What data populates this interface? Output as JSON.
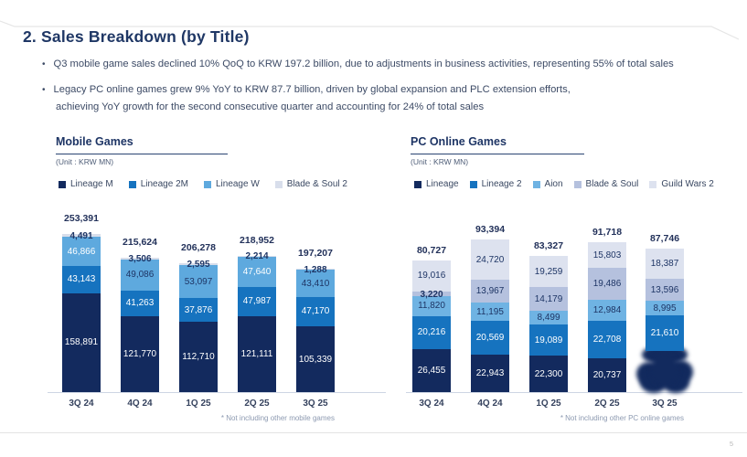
{
  "slide": {
    "title": "2. Sales Breakdown (by Title)",
    "bullets": {
      "b1": "Q3 mobile game sales declined 10% QoQ to KRW 197.2 billion, due to adjustments in business activities, representing 55% of total sales",
      "b2_line1": "Legacy PC online games grew 9% YoY to KRW 87.7 billion, driven by global expansion and PLC extension efforts,",
      "b2_line2": "achieving YoY growth for the second consecutive quarter and accounting for 24% of total sales"
    },
    "page_number": "5"
  },
  "chart_data": [
    {
      "type": "bar",
      "stacked": true,
      "title": "Mobile Games",
      "unit_label": "(Unit : KRW MN)",
      "footnote": "* Not including other mobile games",
      "legend_position": "top",
      "categories": [
        "3Q 24",
        "4Q 24",
        "1Q 25",
        "2Q 25",
        "3Q 25"
      ],
      "series": [
        {
          "name": "Lineage M",
          "color": "#132a5e",
          "values": [
            158891,
            121770,
            112710,
            121111,
            105339
          ],
          "label_colors": [
            "white",
            "white",
            "white",
            "white",
            "white"
          ]
        },
        {
          "name": "Lineage 2M",
          "color": "#1673bf",
          "values": [
            43143,
            41263,
            37876,
            47987,
            47170
          ],
          "label_colors": [
            "white",
            "white",
            "white",
            "white",
            "white"
          ]
        },
        {
          "name": "Lineage W",
          "color": "#5ea9de",
          "values": [
            46866,
            49086,
            53097,
            47640,
            43410
          ],
          "label_colors": [
            "white",
            "navy",
            "navy",
            "white",
            "navy"
          ]
        },
        {
          "name": "Blade & Soul 2",
          "color": "#d8deeb",
          "values": [
            4491,
            3506,
            2595,
            2214,
            1288
          ],
          "label_colors": [
            "navy",
            "navy",
            "navy",
            "navy",
            "navy"
          ]
        }
      ],
      "totals": [
        253391,
        215624,
        206278,
        218952,
        197207
      ]
    },
    {
      "type": "bar",
      "stacked": true,
      "title": "PC Online Games",
      "unit_label": "(Unit : KRW MN)",
      "footnote": "* Not including other PC online games",
      "legend_position": "top",
      "categories": [
        "3Q 24",
        "4Q 24",
        "1Q 25",
        "2Q 25",
        "3Q 25"
      ],
      "series": [
        {
          "name": "Lineage",
          "color": "#132a5e",
          "values": [
            26455,
            22943,
            22300,
            20737,
            25158
          ],
          "label_colors": [
            "white",
            "white",
            "white",
            "white",
            "none"
          ],
          "smudged": [
            false,
            false,
            false,
            false,
            true
          ]
        },
        {
          "name": "Lineage 2",
          "color": "#1673bf",
          "values": [
            20216,
            20569,
            19089,
            22708,
            21610
          ],
          "label_colors": [
            "white",
            "white",
            "white",
            "white",
            "white"
          ]
        },
        {
          "name": "Aion",
          "color": "#6fb3e3",
          "values": [
            11820,
            11195,
            8499,
            12984,
            8995
          ],
          "label_colors": [
            "navy",
            "navy",
            "navy",
            "navy",
            "navy"
          ]
        },
        {
          "name": "Blade & Soul",
          "color": "#b5c1de",
          "values": [
            3220,
            13967,
            14179,
            19486,
            13596
          ],
          "label_colors": [
            "navy",
            "navy",
            "navy",
            "navy",
            "navy"
          ]
        },
        {
          "name": "Guild Wars 2",
          "color": "#dde2ef",
          "values": [
            19016,
            24720,
            19259,
            15803,
            18387
          ],
          "label_colors": [
            "navy",
            "navy",
            "navy",
            "navy",
            "navy"
          ]
        }
      ],
      "totals": [
        80727,
        93394,
        83327,
        91718,
        87746
      ],
      "obscured_segment": {
        "series": "Lineage",
        "category": "3Q 25",
        "appearance": "bottom segment smudged into a blob, value label not readable"
      }
    }
  ]
}
